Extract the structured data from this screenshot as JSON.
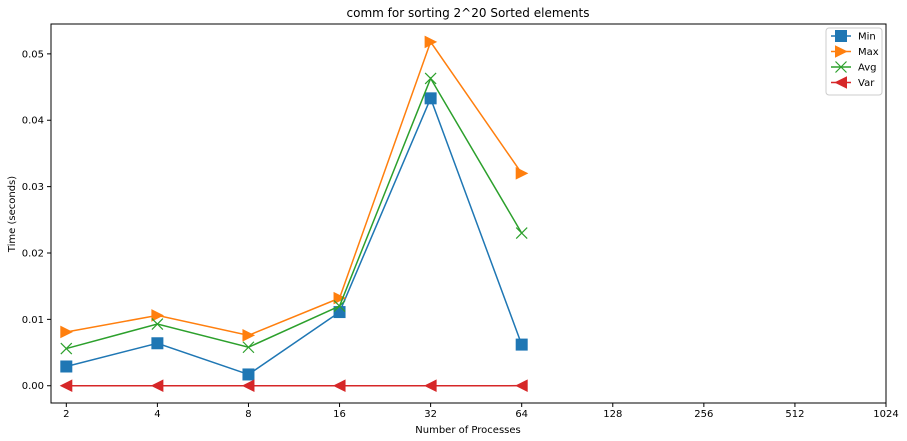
{
  "chart_data": {
    "type": "line",
    "title": "comm for sorting 2^20 Sorted elements",
    "xlabel": "Number of Processes",
    "ylabel": "Time (seconds)",
    "x_scale": "log2",
    "x_ticks": [
      2,
      4,
      8,
      16,
      32,
      64,
      128,
      256,
      512,
      1024
    ],
    "x_tick_labels": [
      "2",
      "4",
      "8",
      "16",
      "32",
      "64",
      "128",
      "256",
      "512",
      "1024"
    ],
    "x": [
      2,
      4,
      8,
      16,
      32,
      64
    ],
    "y_ticks": [
      0.0,
      0.01,
      0.02,
      0.03,
      0.04,
      0.05
    ],
    "y_tick_labels": [
      "0.00",
      "0.01",
      "0.02",
      "0.03",
      "0.04",
      "0.05"
    ],
    "xlim": [
      1.78,
      1024
    ],
    "ylim": [
      -0.0026,
      0.0545
    ],
    "grid": false,
    "legend_position": "top-right",
    "series": [
      {
        "name": "Min",
        "color": "#1f77b4",
        "marker": "square",
        "values": [
          0.0029,
          0.0064,
          0.0017,
          0.0111,
          0.0433,
          0.0062
        ]
      },
      {
        "name": "Max",
        "color": "#ff7f0e",
        "marker": "triangle-right",
        "values": [
          0.0081,
          0.0106,
          0.0076,
          0.0132,
          0.0518,
          0.032
        ]
      },
      {
        "name": "Avg",
        "color": "#2ca02c",
        "marker": "x",
        "values": [
          0.0056,
          0.0093,
          0.0058,
          0.012,
          0.0463,
          0.023
        ]
      },
      {
        "name": "Var",
        "color": "#d62728",
        "marker": "triangle-left",
        "values": [
          0.0,
          0.0,
          0.0,
          0.0,
          0.0,
          1e-05
        ]
      }
    ]
  }
}
